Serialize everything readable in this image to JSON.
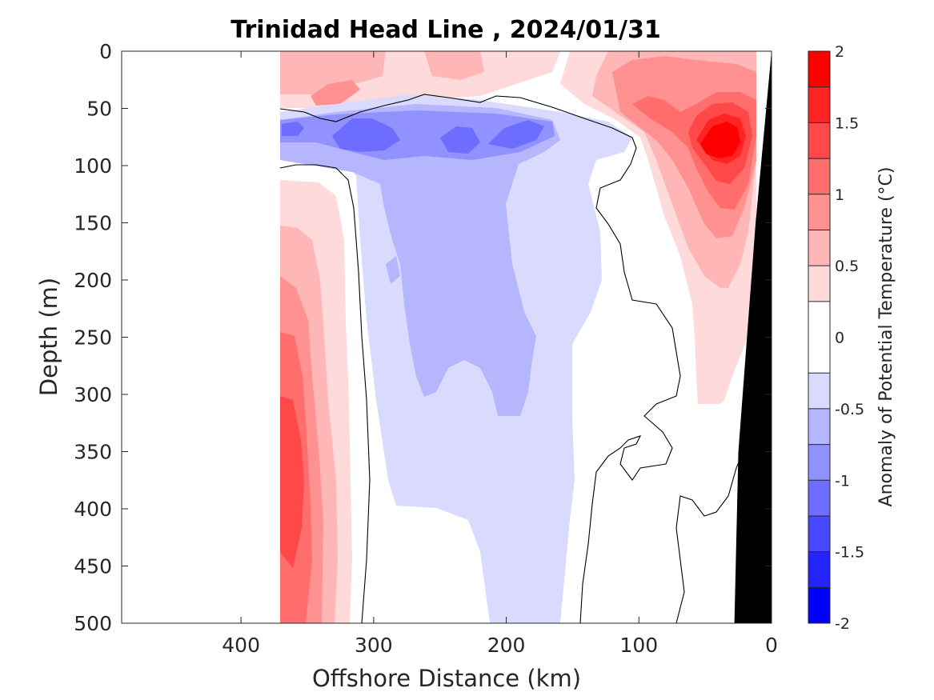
{
  "chart_data": {
    "type": "heatmap",
    "title": "Trinidad Head Line , 2024/01/31",
    "xlabel": "Offshore Distance (km)",
    "ylabel": "Depth (m)",
    "colorbar_label": "Anomaly of Potential Temperature (°C)",
    "xlim": [
      490,
      0
    ],
    "ylim": [
      0,
      500
    ],
    "x_ticks": [
      400,
      300,
      200,
      100,
      0
    ],
    "y_ticks": [
      0,
      50,
      100,
      150,
      200,
      250,
      300,
      350,
      400,
      450,
      500
    ],
    "colorbar": {
      "range": [
        -2,
        2
      ],
      "tick_values": [
        2,
        1.5,
        1,
        0.5,
        0,
        -0.5,
        -1,
        -1.5,
        -2
      ],
      "tick_labels": [
        "2",
        "1.5",
        "1",
        "0.5",
        "0",
        "-0.5",
        "-1",
        "-1.5",
        "-2"
      ],
      "levels": [
        -2,
        -1.75,
        -1.5,
        -1.25,
        -1,
        -0.75,
        -0.5,
        -0.25,
        0.25,
        0.5,
        0.75,
        1,
        1.25,
        1.5,
        1.75,
        2
      ],
      "colors": [
        "#0000ff",
        "#2424ff",
        "#4848ff",
        "#6d6dff",
        "#9191ff",
        "#b6b6ff",
        "#dadaff",
        "#ffffff",
        "#ffdada",
        "#ffb6b6",
        "#ff9191",
        "#ff6d6d",
        "#ff4848",
        "#ff2424",
        "#ff0000"
      ]
    },
    "data_coverage_km": [
      370,
      0
    ],
    "zero_contour": true,
    "land_mask_color": "#000000",
    "features": [
      {
        "region": "shallow offshore layer, 370-150 km, 0-45 m",
        "anomaly": 0.5
      },
      {
        "region": "thermocline cold core, 370-160 km, 60-100 m",
        "anomaly": -1.0
      },
      {
        "region": "cold tongue, 320-150 km, 100-500 m",
        "anomaly": -0.4
      },
      {
        "region": "warm western edge, 370-330 km, 100-500 m",
        "anomaly": 1.4
      },
      {
        "region": "coastal warm core, 60-20 km, 60-100 m",
        "anomaly": 1.8
      },
      {
        "region": "nearshore warm plume, 80-10 km, 0-310 m",
        "anomaly": 0.5
      }
    ]
  }
}
